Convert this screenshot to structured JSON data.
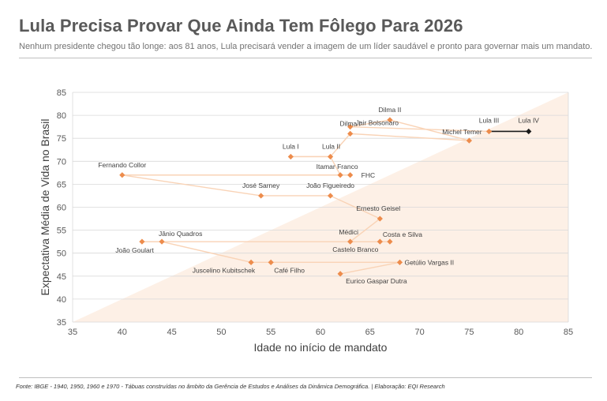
{
  "header": {
    "title": "Lula Precisa Provar Que Ainda Tem Fôlego Para 2026",
    "subtitle": "Nenhum presidente chegou tão longe: aos 81 anos, Lula precisará vender a imagem de um líder saudável e pronto para governar mais um mandato."
  },
  "footer": {
    "source": "Fonte: IBGE - 1940, 1950, 1960 e 1970 - Tábuas construídas no âmbito da Gerência de Estudos e Análises da Dinâmica Demográfica. | Elaboração: EQI Research"
  },
  "colors": {
    "points": "#ed8c4c",
    "line": "#f9d3b6",
    "highlight": "#1a1a1a",
    "shade": "#fdf0e6"
  },
  "chart_data": {
    "type": "scatter",
    "title": "Lula Precisa Provar Que Ainda Tem Fôlego Para 2026",
    "xlabel": "Idade no início de mandato",
    "ylabel": "Expectativa Média de Vida no Brasil",
    "xlim": [
      35,
      85
    ],
    "ylim": [
      35,
      85
    ],
    "xticks": [
      35,
      40,
      45,
      50,
      55,
      60,
      65,
      70,
      75,
      80,
      85
    ],
    "yticks": [
      35,
      40,
      45,
      50,
      55,
      60,
      65,
      70,
      75,
      80,
      85
    ],
    "grid": "horizontal",
    "shaded_region": "below y = x diagonal",
    "points": [
      {
        "name": "Getúlio Vargas II",
        "x": 68,
        "y": 48
      },
      {
        "name": "Eurico Gaspar Dutra",
        "x": 62,
        "y": 45.5
      },
      {
        "name": "Café Filho",
        "x": 55,
        "y": 48
      },
      {
        "name": "Juscelino Kubitschek",
        "x": 53,
        "y": 48
      },
      {
        "name": "Jânio Quadros",
        "x": 44,
        "y": 52.5
      },
      {
        "name": "João Goulart",
        "x": 42,
        "y": 52.5
      },
      {
        "name": "Castelo Branco",
        "x": 66,
        "y": 52.5
      },
      {
        "name": "Costa e Silva",
        "x": 67,
        "y": 52.5
      },
      {
        "name": "Médici",
        "x": 63,
        "y": 52.5
      },
      {
        "name": "Ernesto Geisel",
        "x": 66,
        "y": 57.5
      },
      {
        "name": "João Figueiredo",
        "x": 61,
        "y": 62.5
      },
      {
        "name": "José Sarney",
        "x": 54,
        "y": 62.5
      },
      {
        "name": "Fernando Collor",
        "x": 40,
        "y": 67
      },
      {
        "name": "Itamar Franco",
        "x": 62,
        "y": 67
      },
      {
        "name": "FHC",
        "x": 63,
        "y": 67
      },
      {
        "name": "Lula I",
        "x": 57,
        "y": 71
      },
      {
        "name": "Lula II",
        "x": 61,
        "y": 71
      },
      {
        "name": "Dilma I",
        "x": 63,
        "y": 76
      },
      {
        "name": "Dilma II",
        "x": 67,
        "y": 79
      },
      {
        "name": "Jair Bolsonaro",
        "x": 63,
        "y": 77.5
      },
      {
        "name": "Michel Temer",
        "x": 75,
        "y": 74.5
      },
      {
        "name": "Lula III",
        "x": 77,
        "y": 76.5
      },
      {
        "name": "Lula IV",
        "x": 81,
        "y": 76.5
      }
    ],
    "connection_order": [
      "Eurico Gaspar Dutra",
      "Getúlio Vargas II",
      "Café Filho",
      "Juscelino Kubitschek",
      "Jânio Quadros",
      "João Goulart",
      "Costa e Silva",
      "Castelo Branco",
      "Médici",
      "Ernesto Geisel",
      "João Figueiredo",
      "José Sarney",
      "Fernando Collor",
      "FHC",
      "Itamar Franco",
      "Lula II",
      "Lula I",
      "Lula II",
      "Dilma I",
      "Michel Temer",
      "Dilma II",
      "Jair Bolsonaro",
      "Lula III",
      "Lula IV"
    ],
    "highlight_segment": [
      "Lula III",
      "Lula IV"
    ]
  }
}
